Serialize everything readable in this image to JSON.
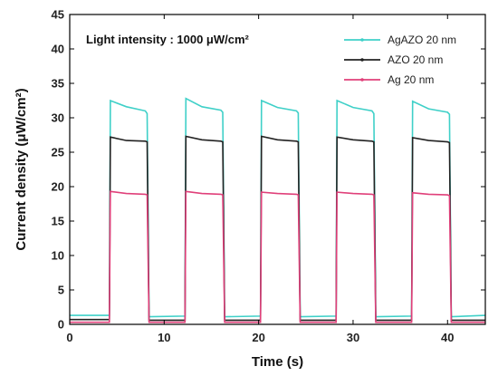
{
  "chart_data": {
    "type": "line",
    "xlabel": "Time (s)",
    "ylabel": "Current density (μW/cm²)",
    "xlim": [
      0,
      44
    ],
    "ylim": [
      0,
      45
    ],
    "xticks": [
      "0",
      "10",
      "20",
      "30",
      "40"
    ],
    "yticks": [
      "0",
      "5",
      "10",
      "15",
      "20",
      "25",
      "30",
      "35",
      "40",
      "45"
    ],
    "annotation": "Light intensity : 1000 μW/cm²",
    "legend_position": "top-right",
    "grid": false,
    "series": [
      {
        "name": "AgAZO 20 nm",
        "color": "#3fd0c8",
        "x": [
          0,
          4.2,
          4.3,
          6.0,
          8.0,
          8.2,
          8.4,
          12.2,
          12.3,
          14.0,
          16.0,
          16.2,
          16.4,
          20.2,
          20.3,
          22.0,
          24.0,
          24.2,
          24.4,
          28.2,
          28.3,
          30.0,
          32.0,
          32.2,
          32.4,
          36.2,
          36.3,
          38.0,
          40.0,
          40.2,
          40.4,
          44
        ],
        "y": [
          1.3,
          1.3,
          32.5,
          31.6,
          31.0,
          30.6,
          1.1,
          1.2,
          32.8,
          31.6,
          31.1,
          30.8,
          1.1,
          1.2,
          32.5,
          31.5,
          31.0,
          30.7,
          1.1,
          1.2,
          32.5,
          31.5,
          31.0,
          30.6,
          1.1,
          1.2,
          32.4,
          31.3,
          30.8,
          30.5,
          1.1,
          1.3
        ]
      },
      {
        "name": "AZO 20 nm",
        "color": "#222222",
        "x": [
          0,
          4.2,
          4.3,
          6.0,
          8.0,
          8.2,
          8.4,
          12.2,
          12.3,
          14.0,
          16.0,
          16.2,
          16.4,
          20.2,
          20.3,
          22.0,
          24.0,
          24.2,
          24.4,
          28.2,
          28.3,
          30.0,
          32.0,
          32.2,
          32.4,
          36.2,
          36.3,
          38.0,
          40.0,
          40.2,
          40.4,
          44
        ],
        "y": [
          0.7,
          0.7,
          27.2,
          26.7,
          26.6,
          26.5,
          0.6,
          0.6,
          27.3,
          26.8,
          26.6,
          26.5,
          0.6,
          0.6,
          27.3,
          26.8,
          26.6,
          26.5,
          0.6,
          0.6,
          27.2,
          26.8,
          26.6,
          26.5,
          0.6,
          0.6,
          27.1,
          26.7,
          26.5,
          26.4,
          0.6,
          0.6
        ]
      },
      {
        "name": "Ag 20 nm",
        "color": "#e0407a",
        "x": [
          0,
          4.2,
          4.3,
          6.0,
          8.0,
          8.2,
          8.4,
          12.2,
          12.3,
          14.0,
          16.0,
          16.2,
          16.4,
          20.2,
          20.3,
          22.0,
          24.0,
          24.2,
          24.4,
          28.2,
          28.3,
          30.0,
          32.0,
          32.2,
          32.4,
          36.2,
          36.3,
          38.0,
          40.0,
          40.2,
          40.4,
          44
        ],
        "y": [
          0.3,
          0.3,
          19.3,
          19.0,
          18.9,
          18.8,
          0.3,
          0.3,
          19.3,
          19.0,
          18.9,
          18.8,
          0.3,
          0.3,
          19.2,
          19.0,
          18.9,
          18.8,
          0.3,
          0.3,
          19.2,
          19.0,
          18.9,
          18.8,
          0.3,
          0.3,
          19.1,
          18.9,
          18.8,
          18.7,
          0.3,
          0.3
        ]
      }
    ]
  }
}
